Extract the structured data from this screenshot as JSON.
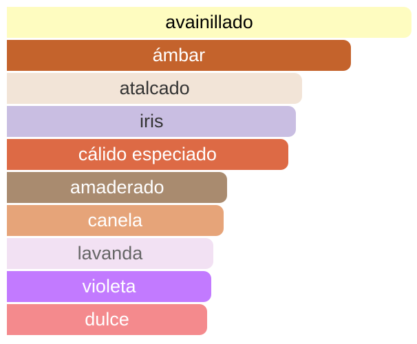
{
  "chart_data": {
    "type": "bar",
    "orientation": "horizontal",
    "title": "",
    "xlabel": "",
    "ylabel": "",
    "grid": false,
    "legend": "none",
    "xlim": [
      0,
      100
    ],
    "categories": [
      "avainillado",
      "ámbar",
      "atalcado",
      "iris",
      "cálido especiado",
      "amaderado",
      "canela",
      "lavanda",
      "violeta",
      "dulce"
    ],
    "values": [
      100,
      85,
      73,
      71.5,
      69.5,
      54.5,
      53.5,
      51,
      50.5,
      49.5
    ],
    "bar_colors": [
      "#fefcc0",
      "#c4632c",
      "#f2e4d7",
      "#c9bee2",
      "#dd6a45",
      "#a98b6f",
      "#e6a479",
      "#f2e1f3",
      "#c27aff",
      "#f48a8d"
    ],
    "label_colors": [
      "#000000",
      "#ffffff",
      "#333333",
      "#333333",
      "#ffffff",
      "#ffffff",
      "#ffffff",
      "#666666",
      "#ffffff",
      "#ffffff"
    ]
  }
}
